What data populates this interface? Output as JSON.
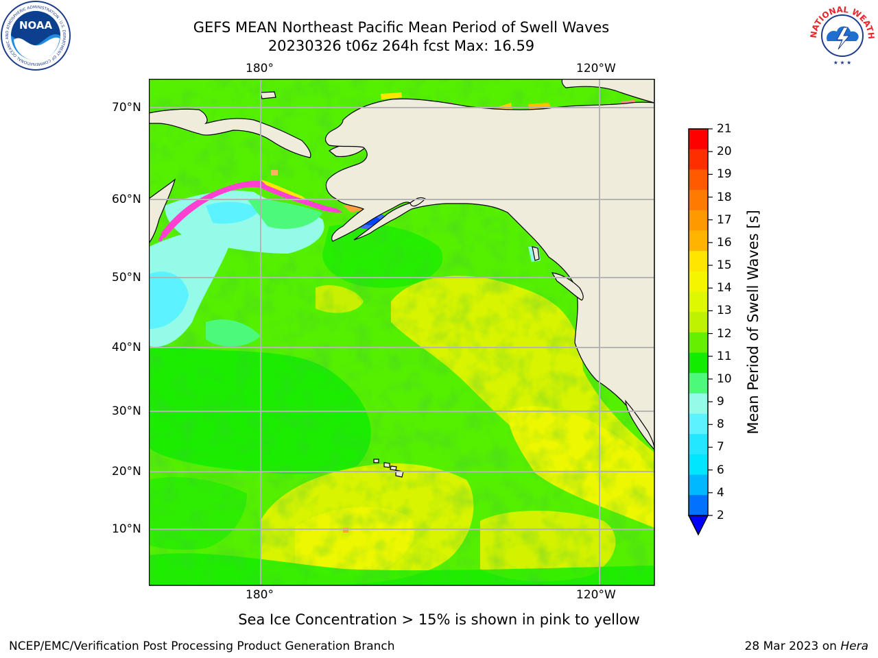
{
  "title_line1": "GEFS MEAN Northeast Pacific Mean Period of Swell Waves",
  "title_line2": "20230326 t06z 264h fcst   Max: 16.59",
  "logos": {
    "left": {
      "name": "noaa-logo",
      "text": "NOAA",
      "ring_text": "NATIONAL OCEANIC AND ATMOSPHERIC ADMINISTRATION · U.S. DEPARTMENT OF COMMERCE"
    },
    "right": {
      "name": "nws-logo",
      "ring_text": "NATIONAL WEATHER SERVICE"
    }
  },
  "map": {
    "lon_labels_top": [
      "180°",
      "120°W"
    ],
    "lon_labels_bottom": [
      "180°",
      "120°W"
    ],
    "lat_labels": [
      "70°N",
      "60°N",
      "50°N",
      "40°N",
      "30°N",
      "20°N",
      "10°N"
    ],
    "land_color": "#efecdc",
    "grid_color": "#b4b4b4",
    "coast_color": "#000000"
  },
  "colorbar": {
    "label": "Mean Period of Swell Waves [s]",
    "ticks": [
      "21",
      "20",
      "19",
      "18",
      "17",
      "16",
      "15",
      "14",
      "13",
      "12",
      "11",
      "10",
      "9",
      "8",
      "7",
      "6",
      "4",
      "2"
    ],
    "colors": [
      "#ff0000",
      "#ff2e00",
      "#ff5a00",
      "#ff7a00",
      "#ff9900",
      "#ffb400",
      "#ffe600",
      "#f5f500",
      "#ddf800",
      "#bef200",
      "#66f000",
      "#12ec00",
      "#4cf97a",
      "#94fbe8",
      "#5af3ff",
      "#23e7ff",
      "#00e6ff",
      "#00b8ff",
      "#0072ff"
    ],
    "extend_color": "#0000ff"
  },
  "note": "Sea Ice Concentration > 15% is shown in pink to yellow",
  "footer_left": "NCEP/EMC/Verification Post Processing Product Generation Branch",
  "footer_right_date": "28 Mar 2023 on ",
  "footer_right_host": "Hera"
}
